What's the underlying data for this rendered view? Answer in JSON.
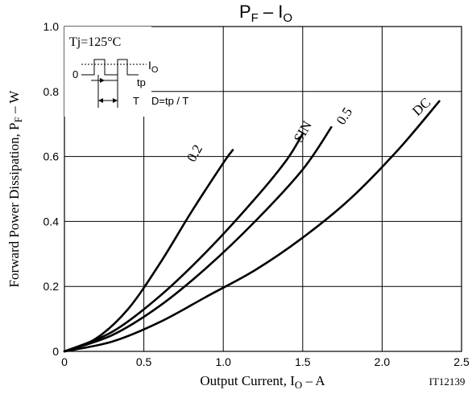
{
  "chart_data": {
    "type": "line",
    "title": {
      "main": "P",
      "sub1": "F",
      "sep": " – I",
      "sub2": "O"
    },
    "xlabel": {
      "main": "Output Current, I",
      "sub": "O",
      "unit": " – A"
    },
    "ylabel": {
      "main": "Forward Power Dissipation, P",
      "sub": "F",
      "unit": " – W"
    },
    "figure_code": "IT12139",
    "xlim": [
      0,
      2.5
    ],
    "ylim": [
      0,
      1.0
    ],
    "xticks": [
      "0",
      "0.5",
      "1.0",
      "1.5",
      "2.0",
      "2.5"
    ],
    "yticks": [
      "0",
      "0.2",
      "0.4",
      "0.6",
      "0.8",
      "1.0"
    ],
    "grid": true,
    "conditions": "Tj=125°C",
    "inset": {
      "io_label": "I",
      "io_sub": "O",
      "zero": "0",
      "tp": "tp",
      "T": "T",
      "duty": "D=tp / T"
    },
    "series": [
      {
        "name": "0.2",
        "x": [
          0,
          0.2,
          0.4,
          0.6,
          0.8,
          1.0,
          1.06
        ],
        "y": [
          0,
          0.04,
          0.13,
          0.27,
          0.43,
          0.58,
          0.62
        ]
      },
      {
        "name": "SIN",
        "x": [
          0,
          0.3,
          0.6,
          0.9,
          1.2,
          1.4,
          1.5
        ],
        "y": [
          0,
          0.06,
          0.17,
          0.31,
          0.47,
          0.59,
          0.67
        ]
      },
      {
        "name": "0.5",
        "x": [
          0,
          0.3,
          0.6,
          0.9,
          1.2,
          1.5,
          1.68
        ],
        "y": [
          0,
          0.05,
          0.14,
          0.26,
          0.4,
          0.56,
          0.69
        ]
      },
      {
        "name": "DC",
        "x": [
          0,
          0.3,
          0.6,
          0.9,
          1.2,
          1.5,
          1.8,
          2.1,
          2.36
        ],
        "y": [
          0,
          0.03,
          0.09,
          0.17,
          0.25,
          0.35,
          0.47,
          0.62,
          0.77
        ]
      }
    ]
  }
}
